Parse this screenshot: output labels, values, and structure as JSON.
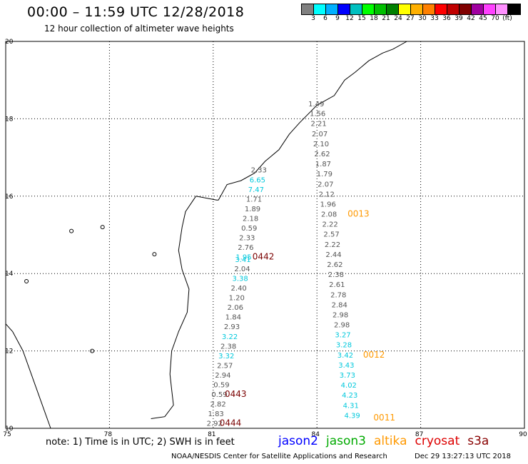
{
  "header": {
    "title": "00:00 – 11:59 UTC 12/28/2018",
    "subtitle": "12 hour collection of altimeter wave heights"
  },
  "colorbar": {
    "colors": [
      "#808080",
      "#00ffff",
      "#00b0ff",
      "#0000ff",
      "#00c0c0",
      "#00ff00",
      "#00c000",
      "#008000",
      "#ffff00",
      "#ffb000",
      "#ff8000",
      "#ff0000",
      "#c00000",
      "#800000",
      "#a000a0",
      "#ff40ff",
      "#ff90ff",
      "#000000"
    ],
    "labels": [
      "3",
      "6",
      "9",
      "12",
      "15",
      "18",
      "21",
      "24",
      "27",
      "30",
      "33",
      "36",
      "39",
      "42",
      "45",
      "70",
      "(ft)"
    ]
  },
  "map_axes": {
    "lon_ticks": [
      "75",
      "78",
      "81",
      "84",
      "87",
      "90"
    ],
    "lat_ticks": [
      "10",
      "12",
      "14",
      "16",
      "18",
      "20"
    ]
  },
  "map_data": {
    "colors": {
      "gray": "#555555",
      "cyan": "#00c8dc",
      "orange": "#ff9900",
      "darkred": "#7a0000"
    },
    "track_east": [
      {
        "text": "1.49",
        "lon": 83.98,
        "lat": 18.32,
        "c": "gray"
      },
      {
        "text": "1.56",
        "lon": 84.02,
        "lat": 18.07,
        "c": "gray"
      },
      {
        "text": "2.21",
        "lon": 84.05,
        "lat": 17.81,
        "c": "gray"
      },
      {
        "text": "2.07",
        "lon": 84.08,
        "lat": 17.55,
        "c": "gray"
      },
      {
        "text": "2.10",
        "lon": 84.12,
        "lat": 17.29,
        "c": "gray"
      },
      {
        "text": "2.62",
        "lon": 84.15,
        "lat": 17.03,
        "c": "gray"
      },
      {
        "text": "1.87",
        "lon": 84.18,
        "lat": 16.77,
        "c": "gray"
      },
      {
        "text": "1.79",
        "lon": 84.22,
        "lat": 16.51,
        "c": "gray"
      },
      {
        "text": "2.07",
        "lon": 84.25,
        "lat": 16.25,
        "c": "gray"
      },
      {
        "text": "2.12",
        "lon": 84.28,
        "lat": 15.99,
        "c": "gray"
      },
      {
        "text": "1.96",
        "lon": 84.32,
        "lat": 15.73,
        "c": "gray"
      },
      {
        "text": "2.08",
        "lon": 84.35,
        "lat": 15.47,
        "c": "gray"
      },
      {
        "text": "2.22",
        "lon": 84.38,
        "lat": 15.21,
        "c": "gray"
      },
      {
        "text": "2.57",
        "lon": 84.42,
        "lat": 14.95,
        "c": "gray"
      },
      {
        "text": "2.22",
        "lon": 84.45,
        "lat": 14.69,
        "c": "gray"
      },
      {
        "text": "2.44",
        "lon": 84.48,
        "lat": 14.43,
        "c": "gray"
      },
      {
        "text": "2.62",
        "lon": 84.52,
        "lat": 14.17,
        "c": "gray"
      },
      {
        "text": "2.38",
        "lon": 84.55,
        "lat": 13.91,
        "c": "gray"
      },
      {
        "text": "2.61",
        "lon": 84.58,
        "lat": 13.65,
        "c": "gray"
      },
      {
        "text": "2.78",
        "lon": 84.62,
        "lat": 13.39,
        "c": "gray"
      },
      {
        "text": "2.84",
        "lon": 84.65,
        "lat": 13.13,
        "c": "gray"
      },
      {
        "text": "2.98",
        "lon": 84.68,
        "lat": 12.87,
        "c": "gray"
      },
      {
        "text": "2.98",
        "lon": 84.72,
        "lat": 12.61,
        "c": "gray"
      },
      {
        "text": "3.27",
        "lon": 84.75,
        "lat": 12.35,
        "c": "cyan"
      },
      {
        "text": "3.28",
        "lon": 84.78,
        "lat": 12.09,
        "c": "cyan"
      },
      {
        "text": "3.42",
        "lon": 84.82,
        "lat": 11.83,
        "c": "cyan"
      },
      {
        "text": "3.43",
        "lon": 84.85,
        "lat": 11.57,
        "c": "cyan"
      },
      {
        "text": "3.73",
        "lon": 84.88,
        "lat": 11.31,
        "c": "cyan"
      },
      {
        "text": "4.02",
        "lon": 84.92,
        "lat": 11.05,
        "c": "cyan"
      },
      {
        "text": "4.23",
        "lon": 84.95,
        "lat": 10.79,
        "c": "cyan"
      },
      {
        "text": "4.31",
        "lon": 84.98,
        "lat": 10.53,
        "c": "cyan"
      },
      {
        "text": "4.39",
        "lon": 85.02,
        "lat": 10.27,
        "c": "cyan"
      }
    ],
    "track_west": [
      {
        "text": "2.33",
        "lon": 82.32,
        "lat": 16.61,
        "c": "gray"
      },
      {
        "text": "6.65",
        "lon": 82.28,
        "lat": 16.36,
        "c": "cyan"
      },
      {
        "text": "7.47",
        "lon": 82.24,
        "lat": 16.11,
        "c": "cyan"
      },
      {
        "text": "1.71",
        "lon": 82.18,
        "lat": 15.86,
        "c": "gray"
      },
      {
        "text": "1.89",
        "lon": 82.14,
        "lat": 15.61,
        "c": "gray"
      },
      {
        "text": "2.18",
        "lon": 82.08,
        "lat": 15.36,
        "c": "gray"
      },
      {
        "text": "0.59",
        "lon": 82.04,
        "lat": 15.11,
        "c": "gray"
      },
      {
        "text": "2.33",
        "lon": 81.98,
        "lat": 14.86,
        "c": "gray"
      },
      {
        "text": "2.76",
        "lon": 81.94,
        "lat": 14.61,
        "c": "gray"
      },
      {
        "text": "1.95",
        "lon": 81.88,
        "lat": 14.36,
        "c": "cyan"
      },
      {
        "text": "3.41",
        "lon": 81.86,
        "lat": 14.3,
        "c": "cyan"
      },
      {
        "text": "2.04",
        "lon": 81.84,
        "lat": 14.06,
        "c": "gray"
      },
      {
        "text": "3.38",
        "lon": 81.78,
        "lat": 13.81,
        "c": "cyan"
      },
      {
        "text": "2.40",
        "lon": 81.74,
        "lat": 13.56,
        "c": "gray"
      },
      {
        "text": "1.20",
        "lon": 81.68,
        "lat": 13.31,
        "c": "gray"
      },
      {
        "text": "2.06",
        "lon": 81.64,
        "lat": 13.06,
        "c": "gray"
      },
      {
        "text": "1.84",
        "lon": 81.58,
        "lat": 12.81,
        "c": "gray"
      },
      {
        "text": "2.93",
        "lon": 81.54,
        "lat": 12.56,
        "c": "gray"
      },
      {
        "text": "3.22",
        "lon": 81.48,
        "lat": 12.31,
        "c": "cyan"
      },
      {
        "text": "2.38",
        "lon": 81.44,
        "lat": 12.06,
        "c": "gray"
      },
      {
        "text": "3.32",
        "lon": 81.38,
        "lat": 11.81,
        "c": "cyan"
      },
      {
        "text": "2.57",
        "lon": 81.34,
        "lat": 11.56,
        "c": "gray"
      },
      {
        "text": "2.94",
        "lon": 81.28,
        "lat": 11.31,
        "c": "gray"
      },
      {
        "text": "0.59",
        "lon": 81.24,
        "lat": 11.06,
        "c": "gray"
      },
      {
        "text": "0.59",
        "lon": 81.18,
        "lat": 10.81,
        "c": "gray"
      },
      {
        "text": "2.82",
        "lon": 81.14,
        "lat": 10.56,
        "c": "gray"
      },
      {
        "text": "1.83",
        "lon": 81.08,
        "lat": 10.31,
        "c": "gray"
      },
      {
        "text": "2.92",
        "lon": 81.04,
        "lat": 10.06,
        "c": "gray"
      }
    ],
    "pass_labels": [
      {
        "text": "0013",
        "lon": 85.2,
        "lat": 15.47,
        "c": "orange"
      },
      {
        "text": "0442",
        "lon": 82.45,
        "lat": 14.36,
        "c": "darkred"
      },
      {
        "text": "0012",
        "lon": 85.65,
        "lat": 11.83,
        "c": "orange"
      },
      {
        "text": "0443",
        "lon": 81.65,
        "lat": 10.81,
        "c": "darkred"
      },
      {
        "text": "0444",
        "lon": 81.5,
        "lat": 10.06,
        "c": "darkred"
      },
      {
        "text": "0011",
        "lon": 85.95,
        "lat": 10.2,
        "c": "orange"
      }
    ]
  },
  "footer": {
    "note": "note: 1) Time is in UTC; 2) SWH is in feet",
    "legend": [
      {
        "name": "jason2",
        "color": "#0000ff"
      },
      {
        "name": "jason3",
        "color": "#00aa00"
      },
      {
        "name": "altika",
        "color": "#ff9900"
      },
      {
        "name": "cryosat",
        "color": "#dd0000"
      },
      {
        "name": "s3a",
        "color": "#880000"
      }
    ],
    "credit": "NOAA/NESDIS Center for Satellite Applications and Research",
    "timestamp": "Dec 29 13:27:13 UTC 2018"
  }
}
